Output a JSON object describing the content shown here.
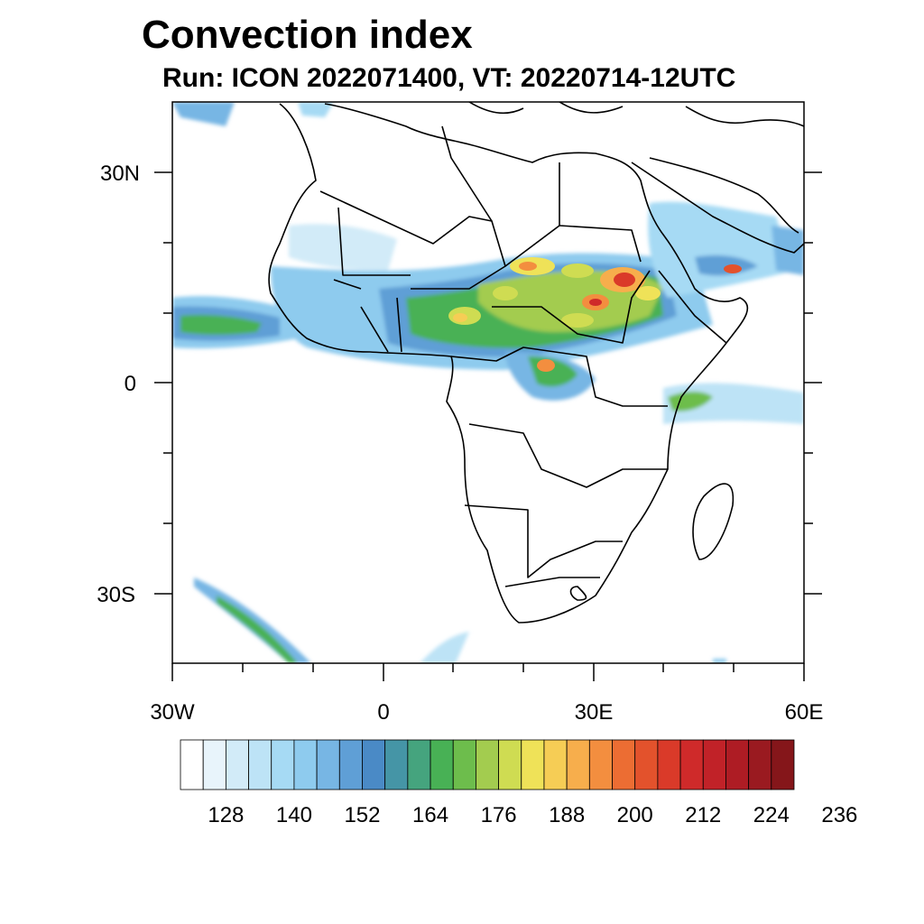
{
  "title": "Convection index",
  "subtitle": "Run: ICON 2022071400,  VT: 20220714-12UTC",
  "map": {
    "lon_range": [
      -30,
      60
    ],
    "lat_range": [
      -40,
      40
    ],
    "lat_ticks": [
      {
        "value": 30,
        "label": "30N"
      },
      {
        "value": 0,
        "label": "0"
      },
      {
        "value": -30,
        "label": "30S"
      }
    ],
    "lon_ticks": [
      {
        "value": -30,
        "label": "30W"
      },
      {
        "value": 0,
        "label": "0"
      },
      {
        "value": 30,
        "label": "30E"
      },
      {
        "value": 60,
        "label": "60E"
      }
    ]
  },
  "colorbar": {
    "colors": [
      "#ffffff",
      "#e8f4fb",
      "#d2ebf8",
      "#bde3f6",
      "#a6daf4",
      "#8ecbee",
      "#77b6e4",
      "#5f9fd6",
      "#4a8ac6",
      "#4595a6",
      "#45a47e",
      "#48b155",
      "#6dbd4c",
      "#a3cc4f",
      "#cfdc52",
      "#efe258",
      "#f6cd55",
      "#f7ae4c",
      "#f38e3f",
      "#ec6d33",
      "#e3522c",
      "#da3a29",
      "#cf2a2a",
      "#c12228",
      "#ae1c24",
      "#9a1a20",
      "#85161a"
    ],
    "labels": [
      "128",
      "140",
      "152",
      "164",
      "176",
      "188",
      "200",
      "212",
      "224",
      "236"
    ]
  }
}
